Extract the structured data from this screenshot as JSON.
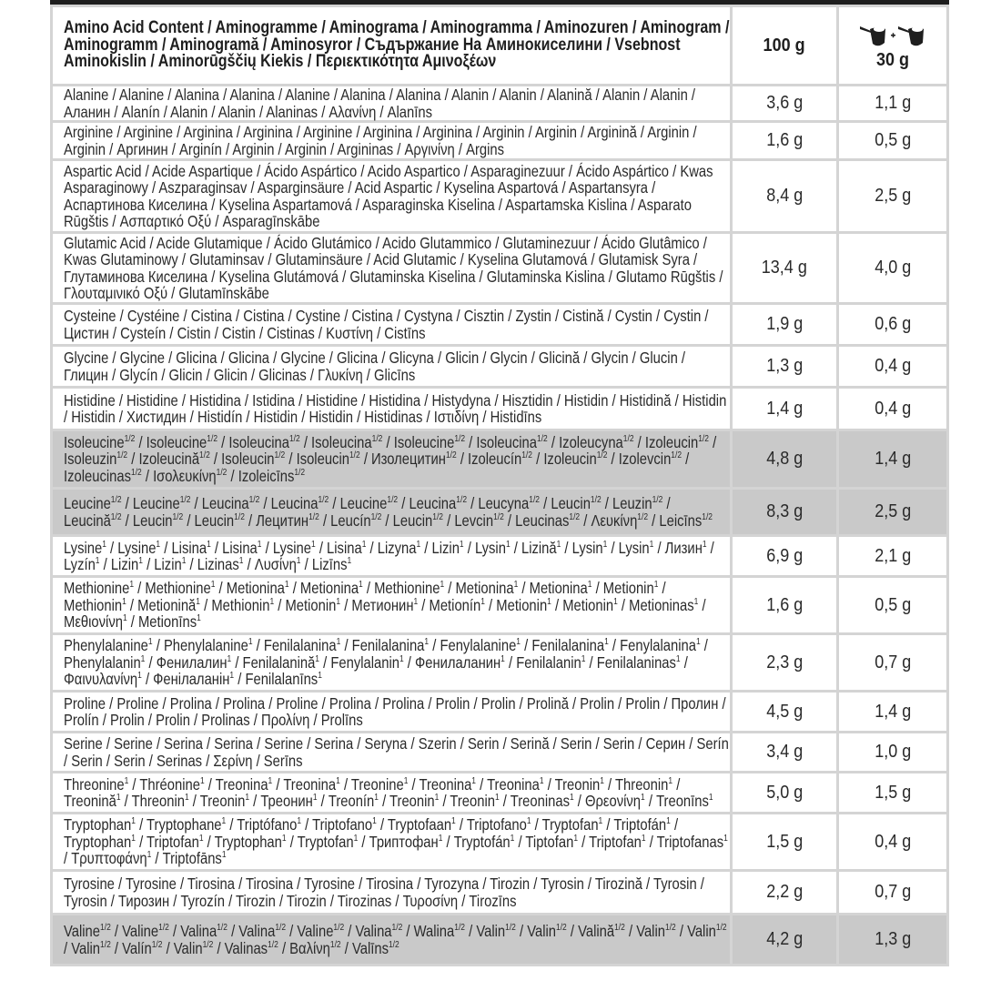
{
  "header": {
    "title": "Amino Acid Content / Aminogramme / Aminograma / Aminogramma / Aminozuren / Aminogram / Aminogramm / Aminogramă / Aminosyror / Съдържание На Аминокиселини / Vsebnost Aminokislin / Aminorūgščių Kiekis / Περιεκτικότητα Αμινοξέων",
    "col_100": "100 g",
    "col_serving": "30 g",
    "serving_icon": "two-scoops-icon"
  },
  "colors": {
    "border": "#d4d4d4",
    "highlight_row": "#c9c9c9",
    "top_bar": "#1e1e1e"
  },
  "rows": [
    {
      "sup": "",
      "grey": false,
      "h": 40,
      "names": [
        "Alanine",
        "Alanine",
        "Alanina",
        "Alanina",
        "Alanine",
        "Alanina",
        "Alanina",
        "Alanin",
        "Alanin",
        "Alanină",
        "Alanin",
        "Alanin",
        "Аланин",
        "Alanín",
        "Alanin",
        "Alanin",
        "Alaninas",
        "Αλανίνη",
        "Alanīns"
      ],
      "v100": "3,6 g",
      "v30": "1,1 g"
    },
    {
      "sup": "",
      "grey": false,
      "h": 42,
      "names": [
        "Arginine",
        "Arginine",
        "Arginina",
        "Arginina",
        "Arginine",
        "Arginina",
        "Arginina",
        "Arginin",
        "Arginin",
        "Arginină",
        "Arginin",
        "Arginin",
        "Аргинин",
        "Arginín",
        "Arginin",
        "Arginin",
        "Argininas",
        "Αργινίνη",
        "Argins"
      ],
      "v100": "1,6 g",
      "v30": "0,5 g"
    },
    {
      "sup": "",
      "grey": false,
      "h": 80,
      "names": [
        "Aspartic Acid",
        "Acide Aspartique",
        "Ácido Aspártico",
        "Acido Aspartico",
        "Asparaginezuur",
        "Ácido Aspártico",
        "Kwas Asparaginowy",
        "Aszparaginsav",
        "Asparginsäure",
        "Acid Aspartic",
        "Kyselina Aspartová",
        "Aspartansyra",
        "Аспартинова Киселина",
        "Kyselina Aspartamová",
        "Asparaginska Kiselina",
        "Aspartamska Kislina",
        "Asparato Rūgštis",
        "Ασπαρτικό Οξύ",
        "Asparagīnskābe"
      ],
      "v100": "8,4 g",
      "v30": "2,5 g"
    },
    {
      "sup": "",
      "grey": false,
      "h": 78,
      "names": [
        "Glutamic Acid",
        "Acide Glutamique",
        "Ácido Glutámico",
        "Acido Glutammico",
        "Glutaminezuur",
        "Ácido Glutâmico",
        "Kwas Glutaminowy",
        "Glutaminsav",
        "Glutaminsäure",
        "Acid Glutamic",
        "Kyselina Glutamová",
        "Glutamisk Syra",
        "Глутаминова Киселина",
        "Kyselina Glutámová",
        "Glutaminska Kiselina",
        "Glutaminska Kislina",
        "Glutamo Rūgštis",
        "Γλουταμινικό Οξύ",
        "Glutamīnskābe"
      ],
      "v100": "13,4 g",
      "v30": "4,0 g"
    },
    {
      "sup": "",
      "grey": false,
      "h": 46,
      "names": [
        "Cysteine",
        "Cystéine",
        "Cistina",
        "Cistina",
        "Cystine",
        "Cistina",
        "Cystyna",
        "Cisztin",
        "Zystin",
        "Cistină",
        "Cystin",
        "Cystin",
        "Цистин",
        "Cysteín",
        "Cistin",
        "Cistin",
        "Cistinas",
        "Κυστίνη",
        "Cistīns"
      ],
      "v100": "1,9 g",
      "v30": "0,6 g"
    },
    {
      "sup": "",
      "grey": false,
      "h": 46,
      "names": [
        "Glycine",
        "Glycine",
        "Glicina",
        "Glicina",
        "Glycine",
        "Glicina",
        "Glicyna",
        "Glicin",
        "Glycin",
        "Glicină",
        "Glycin",
        "Glucin",
        "Глицин",
        "Glycín",
        "Glicin",
        "Glicin",
        "Glicinas",
        "Γλυκίνη",
        "Glicīns"
      ],
      "v100": "1,3 g",
      "v30": "0,4 g"
    },
    {
      "sup": "",
      "grey": false,
      "h": 47,
      "names": [
        "Histidine",
        "Histidine",
        "Histidina",
        "Istidina",
        "Histidine",
        "Histidina",
        "Histydyna",
        "Hisztidin",
        "Histidin",
        "Histidină",
        "Histidin",
        "Histidin",
        "Хистидин",
        "Histidín",
        "Histidin",
        "Histidin",
        "Histidinas",
        "Ιστιδίνη",
        "Histidīns"
      ],
      "v100": "1,4 g",
      "v30": "0,4 g"
    },
    {
      "sup": "1/2",
      "grey": true,
      "h": 64,
      "names": [
        "Isoleucine",
        "Isoleucine",
        "Isoleucina",
        "Isoleucina",
        "Isoleucine",
        "Isoleucina",
        "Izoleucyna",
        "Izoleucin",
        "Isoleuzin",
        "Izoleucină",
        "Isoleucin",
        "Isoleucin",
        "Изолецитин",
        "Izoleucín",
        "Izoleucin",
        "Izolevcin",
        "Izoleucinas",
        "Ισολευκίνη",
        "Izoleicīns"
      ],
      "v100": "4,8 g",
      "v30": "1,4 g"
    },
    {
      "sup": "1/2",
      "grey": true,
      "h": 52,
      "names": [
        "Leucine",
        "Leucine",
        "Leucina",
        "Leucina",
        "Leucine",
        "Leucina",
        "Leucyna",
        "Leucin",
        "Leuzin",
        "Leucină",
        "Leucin",
        "Leucin",
        "Лецитин",
        "Leucín",
        "Leucin",
        "Levcin",
        "Leucinas",
        "Λευκίνη",
        "Leicīns"
      ],
      "v100": "8,3 g",
      "v30": "2,5 g"
    },
    {
      "sup": "1",
      "grey": false,
      "h": 45,
      "names": [
        "Lysine",
        "Lysine",
        "Lisina",
        "Lisina",
        "Lysine",
        "Lisina",
        "Lizyna",
        "Lizin",
        "Lysin",
        "Lizină",
        "Lysin",
        "Lysin",
        "Лизин",
        "Lyzín",
        "Lizin",
        "Lizin",
        "Lizinas",
        "Λυσίνη",
        "Lizīns"
      ],
      "v100": "6,9 g",
      "v30": "2,1 g"
    },
    {
      "sup": "1",
      "grey": false,
      "h": 63,
      "names": [
        "Methionine",
        "Methionine",
        "Metionina",
        "Metionina",
        "Methionine",
        "Metionina",
        "Metionina",
        "Metionin",
        "Methionin",
        "Metionină",
        "Methionin",
        "Metionin",
        "Метионин",
        "Metionín",
        "Metionin",
        "Metionin",
        "Metioninas",
        "Μεθιονίνη",
        "Metionīns"
      ],
      "v100": "1,6 g",
      "v30": "0,5 g"
    },
    {
      "sup": "1",
      "grey": false,
      "h": 63,
      "names": [
        "Phenylalanine",
        "Phenylalanine",
        "Fenilalanina",
        "Fenilalanina",
        "Fenylalanine",
        "Fenilalanina",
        "Fenylalanina",
        "Phenylalanin",
        "Фенилалин",
        "Fenilalanină",
        "Fenylalanin",
        "Фенилаланин",
        "Fenilalanin",
        "Fenilalaninas",
        "Φαινυλανίνη",
        "Фенілаланін",
        "Fenilalanīns"
      ],
      "v100": "2,3 g",
      "v30": "0,7 g"
    },
    {
      "sup": "",
      "grey": false,
      "h": 45,
      "names": [
        "Proline",
        "Proline",
        "Prolina",
        "Prolina",
        "Proline",
        "Prolina",
        "Prolina",
        "Prolin",
        "Prolin",
        "Prolină",
        "Prolin",
        "Prolin",
        "Пролин",
        "Prolín",
        "Prolin",
        "Prolin",
        "Prolinas",
        "Προλίνη",
        "Prolīns"
      ],
      "v100": "4,5 g",
      "v30": "1,4 g"
    },
    {
      "sup": "",
      "grey": false,
      "h": 44,
      "names": [
        "Serine",
        "Serine",
        "Serina",
        "Serina",
        "Serine",
        "Serina",
        "Seryna",
        "Szerin",
        "Serin",
        "Serină",
        "Serin",
        "Serin",
        "Серин",
        "Serín",
        "Serin",
        "Serin",
        "Serinas",
        "Σερίνη",
        "Serīns"
      ],
      "v100": "3,4 g",
      "v30": "1,0 g"
    },
    {
      "sup": "1",
      "grey": false,
      "h": 45,
      "names": [
        "Threonine",
        "Thréonine",
        "Treonina",
        "Treonina",
        "Treonine",
        "Treonina",
        "Treonina",
        "Treonin",
        "Threonin",
        "Treonină",
        "Threonin",
        "Treonin",
        "Треонин",
        "Treonín",
        "Treonin",
        "Treonin",
        "Treoninas",
        "Θρεονίνη",
        "Treonīns"
      ],
      "v100": "5,0 g",
      "v30": "1,5 g"
    },
    {
      "sup": "1",
      "grey": false,
      "h": 63,
      "names": [
        "Tryptophan",
        "Tryptophane",
        "Triptófano",
        "Triptofano",
        "Tryptofaan",
        "Triptofano",
        "Tryptofan",
        "Triptofán",
        "Tryptophan",
        "Triptofan",
        "Tryptophan",
        "Tryptofan",
        "Триптофан",
        "Tryptofán",
        "Tiptofan",
        "Triptofan",
        "Triptofanas",
        "Τρυπτοφάνη",
        "Triptofāns"
      ],
      "v100": "1,5 g",
      "v30": "0,4 g"
    },
    {
      "sup": "",
      "grey": false,
      "h": 48,
      "names": [
        "Tyrosine",
        "Tyrosine",
        "Tirosina",
        "Tirosina",
        "Tyrosine",
        "Tirosina",
        "Tyrozyna",
        "Tirozin",
        "Tyrosin",
        "Tirozină",
        "Tyrosin",
        "Tyrosin",
        "Тирозин",
        "Tyrozín",
        "Tirozin",
        "Tirozin",
        "Tirozinas",
        "Τυροσίνη",
        "Tirozīns"
      ],
      "v100": "2,2 g",
      "v30": "0,7 g"
    },
    {
      "sup": "1/2",
      "grey": true,
      "h": 56,
      "names": [
        "Valine",
        "Valine",
        "Valina",
        "Valina",
        "Valine",
        "Valina",
        "Walina",
        "Valin",
        "Valin",
        "Valină",
        "Valin",
        "Valin",
        "Valin",
        "Valín",
        "Valin",
        "Valinas",
        "Βαλίνη",
        "Valīns"
      ],
      "v100": "4,2 g",
      "v30": "1,3 g"
    }
  ]
}
